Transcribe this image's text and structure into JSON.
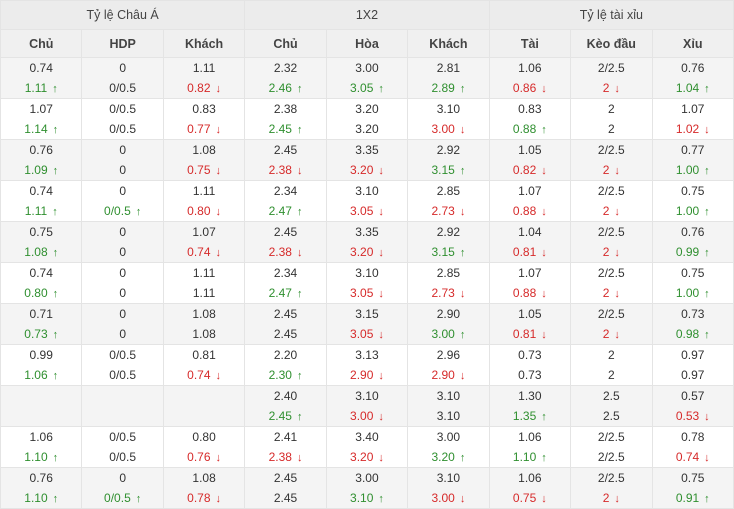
{
  "groups": [
    "Tỷ lệ Châu Á",
    "1X2",
    "Tỷ lệ tài xỉu"
  ],
  "columns": [
    "Chủ",
    "HDP",
    "Khách",
    "Chủ",
    "Hòa",
    "Khách",
    "Tài",
    "Kèo đầu",
    "Xỉu"
  ],
  "colors": {
    "up": "#2f8f2f",
    "down": "#d62a2a"
  },
  "icons": {
    "up": "arrow-up-icon",
    "down": "arrow-down-icon"
  },
  "rows": [
    {
      "top": [
        "0.74",
        "0",
        "1.11",
        "2.32",
        "3.00",
        "2.81",
        "1.06",
        "2/2.5",
        "0.76"
      ],
      "bottom": [
        "1.11",
        "0/0.5",
        "0.82",
        "2.46",
        "3.05",
        "2.89",
        "0.86",
        "2",
        "1.04"
      ],
      "dir": [
        "u",
        "",
        "d",
        "u",
        "u",
        "u",
        "d",
        "d",
        "u"
      ]
    },
    {
      "top": [
        "1.07",
        "0/0.5",
        "0.83",
        "2.38",
        "3.20",
        "3.10",
        "0.83",
        "2",
        "1.07"
      ],
      "bottom": [
        "1.14",
        "0/0.5",
        "0.77",
        "2.45",
        "3.20",
        "3.00",
        "0.88",
        "2",
        "1.02"
      ],
      "dir": [
        "u",
        "",
        "d",
        "u",
        "",
        "d",
        "u",
        "",
        "d"
      ]
    },
    {
      "top": [
        "0.76",
        "0",
        "1.08",
        "2.45",
        "3.35",
        "2.92",
        "1.05",
        "2/2.5",
        "0.77"
      ],
      "bottom": [
        "1.09",
        "0",
        "0.75",
        "2.38",
        "3.20",
        "3.15",
        "0.82",
        "2",
        "1.00"
      ],
      "dir": [
        "u",
        "",
        "d",
        "d",
        "d",
        "u",
        "d",
        "d",
        "u"
      ]
    },
    {
      "top": [
        "0.74",
        "0",
        "1.11",
        "2.34",
        "3.10",
        "2.85",
        "1.07",
        "2/2.5",
        "0.75"
      ],
      "bottom": [
        "1.11",
        "0/0.5",
        "0.80",
        "2.47",
        "3.05",
        "2.73",
        "0.88",
        "2",
        "1.00"
      ],
      "dir": [
        "u",
        "u",
        "d",
        "u",
        "d",
        "d",
        "d",
        "d",
        "u"
      ]
    },
    {
      "top": [
        "0.75",
        "0",
        "1.07",
        "2.45",
        "3.35",
        "2.92",
        "1.04",
        "2/2.5",
        "0.76"
      ],
      "bottom": [
        "1.08",
        "0",
        "0.74",
        "2.38",
        "3.20",
        "3.15",
        "0.81",
        "2",
        "0.99"
      ],
      "dir": [
        "u",
        "",
        "d",
        "d",
        "d",
        "u",
        "d",
        "d",
        "u"
      ]
    },
    {
      "top": [
        "0.74",
        "0",
        "1.11",
        "2.34",
        "3.10",
        "2.85",
        "1.07",
        "2/2.5",
        "0.75"
      ],
      "bottom": [
        "0.80",
        "0",
        "1.11",
        "2.47",
        "3.05",
        "2.73",
        "0.88",
        "2",
        "1.00"
      ],
      "dir": [
        "u",
        "",
        "",
        "u",
        "d",
        "d",
        "d",
        "d",
        "u"
      ]
    },
    {
      "top": [
        "0.71",
        "0",
        "1.08",
        "2.45",
        "3.15",
        "2.90",
        "1.05",
        "2/2.5",
        "0.73"
      ],
      "bottom": [
        "0.73",
        "0",
        "1.08",
        "2.45",
        "3.05",
        "3.00",
        "0.81",
        "2",
        "0.98"
      ],
      "dir": [
        "u",
        "",
        "",
        "",
        "d",
        "u",
        "d",
        "d",
        "u"
      ]
    },
    {
      "top": [
        "0.99",
        "0/0.5",
        "0.81",
        "2.20",
        "3.13",
        "2.96",
        "0.73",
        "2",
        "0.97"
      ],
      "bottom": [
        "1.06",
        "0/0.5",
        "0.74",
        "2.30",
        "2.90",
        "2.90",
        "0.73",
        "2",
        "0.97"
      ],
      "dir": [
        "u",
        "",
        "d",
        "u",
        "d",
        "d",
        "",
        "",
        ""
      ]
    },
    {
      "top": [
        "",
        "",
        "",
        "2.40",
        "3.10",
        "3.10",
        "1.30",
        "2.5",
        "0.57"
      ],
      "bottom": [
        "",
        "",
        "",
        "2.45",
        "3.00",
        "3.10",
        "1.35",
        "2.5",
        "0.53"
      ],
      "dir": [
        "",
        "",
        "",
        "u",
        "d",
        "",
        "u",
        "",
        "d"
      ]
    },
    {
      "top": [
        "1.06",
        "0/0.5",
        "0.80",
        "2.41",
        "3.40",
        "3.00",
        "1.06",
        "2/2.5",
        "0.78"
      ],
      "bottom": [
        "1.10",
        "0/0.5",
        "0.76",
        "2.38",
        "3.20",
        "3.20",
        "1.10",
        "2/2.5",
        "0.74"
      ],
      "dir": [
        "u",
        "",
        "d",
        "d",
        "d",
        "u",
        "u",
        "",
        "d"
      ]
    },
    {
      "top": [
        "0.76",
        "0",
        "1.08",
        "2.45",
        "3.00",
        "3.10",
        "1.06",
        "2/2.5",
        "0.75"
      ],
      "bottom": [
        "1.10",
        "0/0.5",
        "0.78",
        "2.45",
        "3.10",
        "3.00",
        "0.75",
        "2",
        "0.91"
      ],
      "dir": [
        "u",
        "u",
        "d",
        "",
        "u",
        "d",
        "d",
        "d",
        "u"
      ]
    }
  ]
}
